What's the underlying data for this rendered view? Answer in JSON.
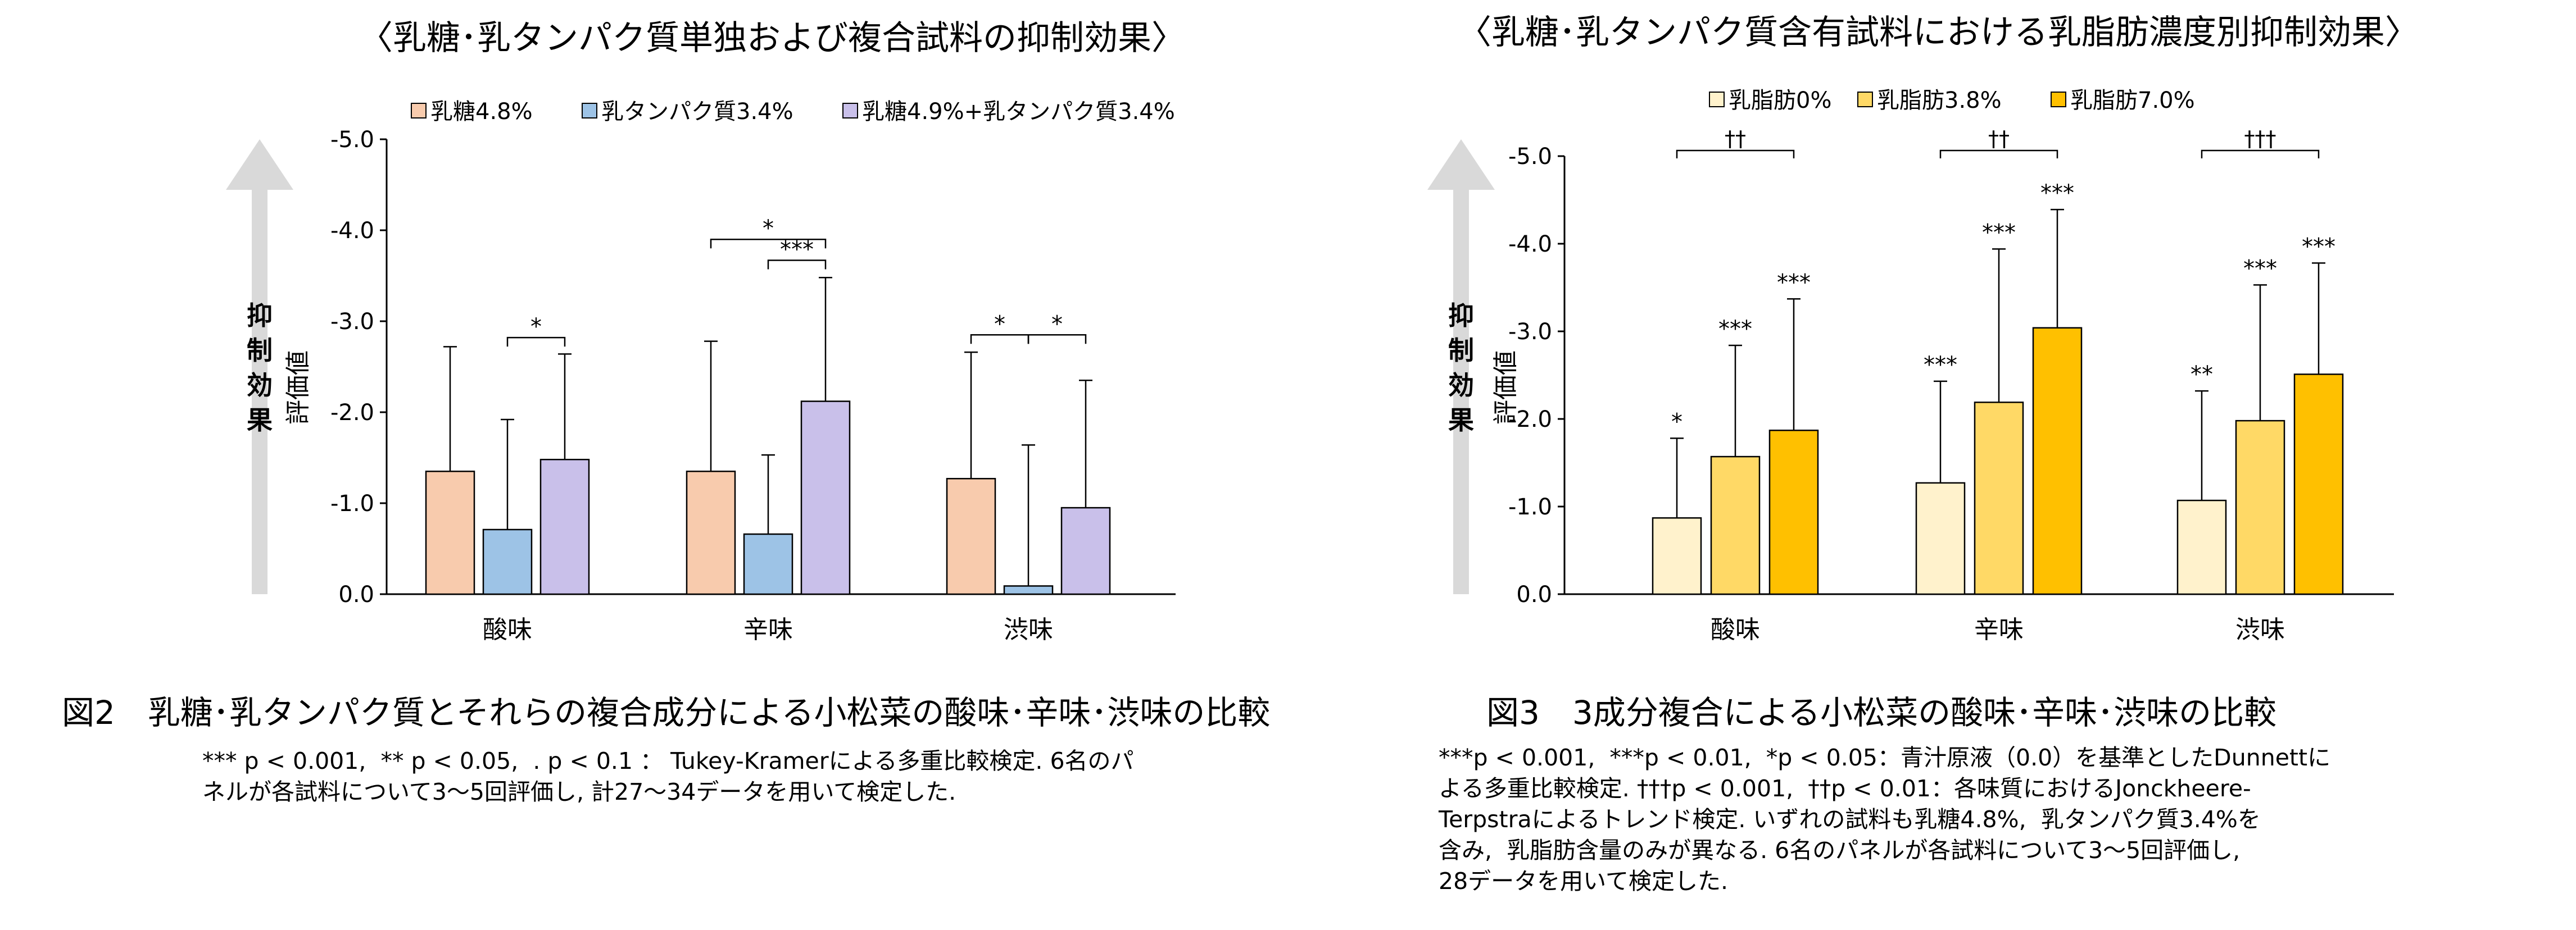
{
  "figures": [
    {
      "title": "〈乳糖･乳タンパク質単独および複合試料の抑制効果〉",
      "caption": "図2　乳糖･乳タンパク質とそれらの複合成分による小松菜の酸味･辛味･渋味の比較",
      "note": "*** p < 0.001,  ** p < 0.05,  . p < 0.1 ： Tukey-Kramerによる多重比較検定. 6名のパ\nネルが各試料について3～5回評価し, 計27～34データを用いて検定した.",
      "arrow_label": "抑制効果"
    },
    {
      "title": "〈乳糖･乳タンパク質含有試料における乳脂肪濃度別抑制効果〉",
      "caption": "図3　3成分複合による小松菜の酸味･辛味･渋味の比較",
      "note": "***p < 0.001,  ***p < 0.01,  *p < 0.05：青汁原液（0.0）を基準としたDunnettに\nよる多重比較検定. †††p < 0.001,  ††p < 0.01：各味質におけるJonckheere-\nTerpstraによるトレンド検定. いずれの試料も乳糖4.8%,  乳タンパク質3.4%を\n含み,  乳脂肪含量のみが異なる. 6名のパネルが各試料について3～5回評価し,\n28データを用いて検定した.",
      "arrow_label": "抑制効果"
    }
  ],
  "chart_data": [
    {
      "type": "bar",
      "ylabel": "評価値",
      "ylim": [
        0.0,
        -5.0
      ],
      "yticks": [
        "-5.0",
        "-4.0",
        "-3.0",
        "-2.0",
        "-1.0",
        "0.0"
      ],
      "categories": [
        "酸味",
        "辛味",
        "渋味"
      ],
      "legend_position": "top",
      "series": [
        {
          "name": "乳糖4.8%",
          "color": "#F8CBAD",
          "values": [
            -1.35,
            -1.35,
            -1.27
          ],
          "err": [
            1.37,
            1.43,
            1.39
          ]
        },
        {
          "name": "乳タンパク質3.4%",
          "color": "#9DC3E6",
          "values": [
            -0.71,
            -0.66,
            -0.09
          ],
          "err": [
            1.21,
            0.87,
            1.55
          ]
        },
        {
          "name": "乳糖4.9%+乳タンパク質3.4%",
          "color": "#C9C0EA",
          "values": [
            -1.48,
            -2.12,
            -0.95
          ],
          "err": [
            1.16,
            1.36,
            1.4
          ]
        }
      ],
      "comparisons": [
        {
          "category": 0,
          "from": 1,
          "to": 2,
          "y": -2.82,
          "label": "*"
        },
        {
          "category": 1,
          "from": 0,
          "to": 2,
          "y": -3.9,
          "label": "*"
        },
        {
          "category": 1,
          "from": 1,
          "to": 2,
          "y": -3.67,
          "label": "***"
        },
        {
          "category": 2,
          "from": 0,
          "to": 1,
          "y": -2.85,
          "label": "*"
        },
        {
          "category": 2,
          "from": 1,
          "to": 2,
          "y": -2.85,
          "label": "*"
        }
      ]
    },
    {
      "type": "bar",
      "ylabel": "評価値",
      "ylim": [
        0.0,
        -5.0
      ],
      "yticks": [
        "-5.0",
        "-4.0",
        "-3.0",
        "-2.0",
        "-1.0",
        "0.0"
      ],
      "categories": [
        "酸味",
        "辛味",
        "渋味"
      ],
      "legend_position": "top",
      "series": [
        {
          "name": "乳脂肪0%",
          "color": "#FFF2CC",
          "values": [
            -0.87,
            -1.27,
            -1.07
          ],
          "err": [
            0.91,
            1.16,
            1.25
          ],
          "sig": [
            "*",
            "***",
            "**"
          ]
        },
        {
          "name": "乳脂肪3.8%",
          "color": "#FFD966",
          "values": [
            -1.57,
            -2.19,
            -1.98
          ],
          "err": [
            1.27,
            1.75,
            1.55
          ],
          "sig": [
            "***",
            "***",
            "***"
          ]
        },
        {
          "name": "乳脂肪7.0%",
          "color": "#FFC000",
          "values": [
            -1.87,
            -3.04,
            -2.51
          ],
          "err": [
            1.5,
            1.35,
            1.27
          ],
          "sig": [
            "***",
            "***",
            "***"
          ]
        }
      ],
      "trend": [
        "††",
        "††",
        "†††"
      ]
    }
  ]
}
